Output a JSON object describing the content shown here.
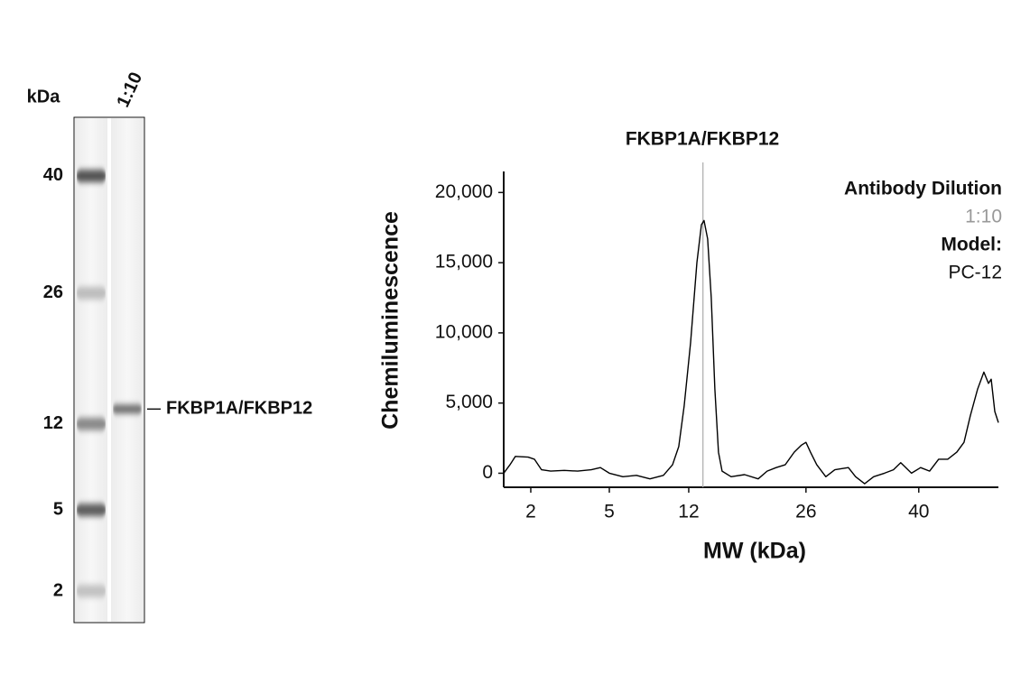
{
  "chart_data": [
    {
      "type": "gel",
      "y_label": "kDa",
      "yticks": [
        40,
        26,
        12,
        5,
        2
      ],
      "ylim": [
        0.8,
        47
      ],
      "ladder_bands": [
        40,
        26,
        12,
        5,
        2
      ],
      "ladder_shades": [
        "#555555",
        "#bdbdbd",
        "#8a8a8a",
        "#5e5e5e",
        "#c2c2c2"
      ],
      "lane": "1:10",
      "lane_bands": [
        13.6
      ],
      "lane_shade": "#6e6e6e",
      "band_label": "FKBP1A/FKBP12"
    },
    {
      "type": "line",
      "title": "FKBP1A/FKBP12",
      "x_label": "MW (kDa)",
      "y_label": "Chemiluminescence",
      "marker_x": 13.7,
      "x": [
        1.0,
        1.23,
        1.43,
        1.9,
        2.14,
        2.41,
        2.76,
        3.28,
        3.79,
        4.31,
        4.66,
        5.0,
        6.19,
        7.39,
        8.58,
        9.77,
        10.57,
        11.12,
        11.6,
        12.22,
        12.97,
        13.51,
        13.83,
        14.26,
        14.69,
        15.12,
        15.55,
        15.98,
        17.06,
        18.67,
        20.29,
        21.36,
        22.44,
        23.52,
        24.6,
        25.46,
        26.0,
        26.56,
        27.34,
        28.46,
        29.58,
        31.26,
        32.16,
        33.28,
        34.4,
        35.74,
        36.86,
        37.76,
        39.1,
        40.23,
        41.36,
        42.5,
        43.64,
        44.77,
        45.68,
        46.48,
        47.39,
        48.18,
        48.75,
        49.09,
        49.55,
        50.0
      ],
      "series": [
        {
          "name": "1:10",
          "color": "#000000",
          "label_color": "#999999",
          "values": [
            0,
            600,
            1200,
            1150,
            1000,
            250,
            150,
            200,
            150,
            250,
            400,
            0,
            -250,
            -150,
            -400,
            -150,
            600,
            1900,
            4800,
            9300,
            15000,
            17700,
            18000,
            16700,
            12500,
            6000,
            1500,
            150,
            -250,
            -100,
            -400,
            150,
            400,
            600,
            1500,
            2000,
            2200,
            1500,
            600,
            -250,
            250,
            400,
            -250,
            -750,
            -250,
            0,
            250,
            750,
            0,
            400,
            150,
            1000,
            1000,
            1500,
            2200,
            4100,
            6000,
            7200,
            6400,
            6700,
            4400,
            3600
          ]
        }
      ],
      "legend_title": "Antibody Dilution",
      "model_label": "Model:",
      "model": "PC-12",
      "xlim": [
        1,
        50
      ],
      "xticks": [
        2,
        5,
        12,
        26,
        40
      ],
      "ylim": [
        -1000,
        21500
      ],
      "yticks": [
        0,
        {
          "value": 5000,
          "label": "5,000"
        },
        {
          "value": 10000,
          "label": "10,000"
        },
        {
          "value": 15000,
          "label": "15,000"
        },
        {
          "value": 20000,
          "label": "20,000"
        }
      ]
    }
  ]
}
